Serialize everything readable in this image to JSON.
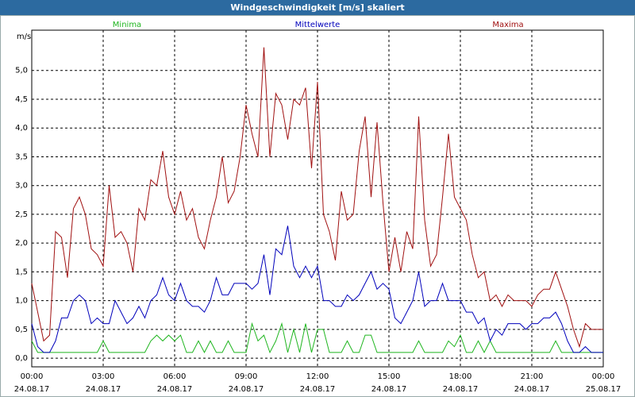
{
  "chart_data": {
    "type": "line",
    "title": "Windgeschwindigkeit [m/s] skaliert",
    "y_label": "m/s",
    "x": [
      0,
      0.25,
      0.5,
      0.75,
      1,
      1.25,
      1.5,
      1.75,
      2,
      2.25,
      2.5,
      2.75,
      3,
      3.25,
      3.5,
      3.75,
      4,
      4.25,
      4.5,
      4.75,
      5,
      5.25,
      5.5,
      5.75,
      6,
      6.25,
      6.5,
      6.75,
      7,
      7.25,
      7.5,
      7.75,
      8,
      8.25,
      8.5,
      8.75,
      9,
      9.25,
      9.5,
      9.75,
      10,
      10.25,
      10.5,
      10.75,
      11,
      11.25,
      11.5,
      11.75,
      12,
      12.25,
      12.5,
      12.75,
      13,
      13.25,
      13.5,
      13.75,
      14,
      14.25,
      14.5,
      14.75,
      15,
      15.25,
      15.5,
      15.75,
      16,
      16.25,
      16.5,
      16.75,
      17,
      17.25,
      17.5,
      17.75,
      18,
      18.25,
      18.5,
      18.75,
      19,
      19.25,
      19.5,
      19.75,
      20,
      20.25,
      20.5,
      20.75,
      21,
      21.25,
      21.5,
      21.75,
      22,
      22.25,
      22.5,
      22.75,
      23,
      23.25,
      23.5,
      23.75,
      24
    ],
    "series": [
      {
        "name": "Minima",
        "color": "#1fb51f",
        "values": [
          0.3,
          0.1,
          0.1,
          0.1,
          0.1,
          0.1,
          0.1,
          0.1,
          0.1,
          0.1,
          0.1,
          0.1,
          0.3,
          0.1,
          0.1,
          0.1,
          0.1,
          0.1,
          0.1,
          0.1,
          0.3,
          0.4,
          0.3,
          0.4,
          0.3,
          0.4,
          0.1,
          0.1,
          0.3,
          0.1,
          0.3,
          0.1,
          0.1,
          0.3,
          0.1,
          0.1,
          0.1,
          0.6,
          0.3,
          0.4,
          0.1,
          0.3,
          0.6,
          0.1,
          0.5,
          0.1,
          0.6,
          0.1,
          0.5,
          0.5,
          0.1,
          0.1,
          0.1,
          0.3,
          0.1,
          0.1,
          0.4,
          0.4,
          0.1,
          0.1,
          0.1,
          0.1,
          0.1,
          0.1,
          0.1,
          0.3,
          0.1,
          0.1,
          0.1,
          0.1,
          0.3,
          0.2,
          0.4,
          0.1,
          0.1,
          0.3,
          0.1,
          0.3,
          0.1,
          0.1,
          0.1,
          0.1,
          0.1,
          0.1,
          0.1,
          0.1,
          0.1,
          0.1,
          0.3,
          0.1,
          0.1,
          0.1,
          0.1,
          0.1,
          0.1,
          0.1,
          0.1
        ]
      },
      {
        "name": "Mittelwerte",
        "color": "#0000bb",
        "values": [
          0.6,
          0.2,
          0.1,
          0.1,
          0.3,
          0.7,
          0.7,
          1.0,
          1.1,
          1.0,
          0.6,
          0.7,
          0.6,
          0.6,
          1.0,
          0.8,
          0.6,
          0.7,
          0.9,
          0.7,
          1.0,
          1.1,
          1.4,
          1.1,
          1.0,
          1.3,
          1.0,
          0.9,
          0.9,
          0.8,
          1.0,
          1.4,
          1.1,
          1.1,
          1.3,
          1.3,
          1.3,
          1.2,
          1.3,
          1.8,
          1.1,
          1.9,
          1.8,
          2.3,
          1.6,
          1.4,
          1.6,
          1.4,
          1.6,
          1.0,
          1.0,
          0.9,
          0.9,
          1.1,
          1.0,
          1.1,
          1.3,
          1.5,
          1.2,
          1.3,
          1.2,
          0.7,
          0.6,
          0.8,
          1.0,
          1.5,
          0.9,
          1.0,
          1.0,
          1.3,
          1.0,
          1.0,
          1.0,
          0.8,
          0.8,
          0.6,
          0.7,
          0.3,
          0.5,
          0.4,
          0.6,
          0.6,
          0.6,
          0.5,
          0.6,
          0.6,
          0.7,
          0.7,
          0.8,
          0.6,
          0.3,
          0.1,
          0.1,
          0.2,
          0.1,
          0.1,
          0.1
        ]
      },
      {
        "name": "Maxima",
        "color": "#a01010",
        "values": [
          1.3,
          0.8,
          0.3,
          0.4,
          2.2,
          2.1,
          1.4,
          2.6,
          2.8,
          2.5,
          1.9,
          1.8,
          1.6,
          3.0,
          2.1,
          2.2,
          2.0,
          1.5,
          2.6,
          2.4,
          3.1,
          3.0,
          3.6,
          2.8,
          2.5,
          2.9,
          2.4,
          2.6,
          2.1,
          1.9,
          2.4,
          2.8,
          3.5,
          2.7,
          2.9,
          3.5,
          4.4,
          3.9,
          3.5,
          5.4,
          3.5,
          4.6,
          4.4,
          3.8,
          4.5,
          4.4,
          4.7,
          3.3,
          4.8,
          2.5,
          2.2,
          1.7,
          2.9,
          2.4,
          2.5,
          3.6,
          4.2,
          2.8,
          4.1,
          2.7,
          1.5,
          2.1,
          1.5,
          2.2,
          1.9,
          4.2,
          2.4,
          1.6,
          1.8,
          2.8,
          3.9,
          2.8,
          2.6,
          2.4,
          1.8,
          1.4,
          1.5,
          1.0,
          1.1,
          0.9,
          1.1,
          1.0,
          1.0,
          1.0,
          0.9,
          1.1,
          1.2,
          1.2,
          1.5,
          1.2,
          0.9,
          0.5,
          0.2,
          0.6,
          0.5,
          0.5,
          0.5
        ]
      }
    ],
    "xlim": [
      0,
      24
    ],
    "ylim": [
      -0.15,
      5.7
    ],
    "xticks": [
      {
        "value": 0,
        "label": "00:00\n24.08.17"
      },
      {
        "value": 3,
        "label": "03:00\n24.08.17"
      },
      {
        "value": 6,
        "label": "06:00\n24.08.17"
      },
      {
        "value": 9,
        "label": "09:00\n24.08.17"
      },
      {
        "value": 12,
        "label": "12:00\n24.08.17"
      },
      {
        "value": 15,
        "label": "15:00\n24.08.17"
      },
      {
        "value": 18,
        "label": "18:00\n24.08.17"
      },
      {
        "value": 21,
        "label": "21:00\n24.08.17"
      },
      {
        "value": 24,
        "label": "00:00\n25.08.17"
      }
    ],
    "yticks": [
      {
        "value": 0,
        "label": "0,0"
      },
      {
        "value": 0.5,
        "label": "0,5"
      },
      {
        "value": 1,
        "label": "1,0"
      },
      {
        "value": 1.5,
        "label": "1,5"
      },
      {
        "value": 2,
        "label": "2,0"
      },
      {
        "value": 2.5,
        "label": "2,5"
      },
      {
        "value": 3,
        "label": "3,0"
      },
      {
        "value": 3.5,
        "label": "3,5"
      },
      {
        "value": 4,
        "label": "4,0"
      },
      {
        "value": 4.5,
        "label": "4,5"
      },
      {
        "value": 5,
        "label": "5,0"
      }
    ],
    "grid": true
  }
}
